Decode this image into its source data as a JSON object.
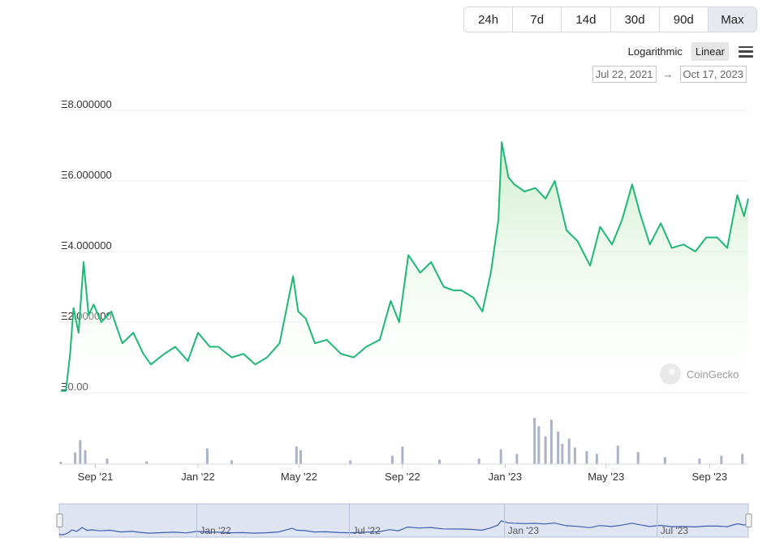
{
  "range_buttons": [
    {
      "label": "24h",
      "active": false
    },
    {
      "label": "7d",
      "active": false
    },
    {
      "label": "14d",
      "active": false
    },
    {
      "label": "30d",
      "active": false
    },
    {
      "label": "90d",
      "active": false
    },
    {
      "label": "Max",
      "active": true
    }
  ],
  "scale": {
    "log_label": "Logarithmic",
    "linear_label": "Linear",
    "selected": "Linear"
  },
  "date_range": {
    "from": "Jul 22, 2021",
    "arrow": "→",
    "to": "Oct 17, 2023"
  },
  "watermark": "CoinGecko",
  "navigator_labels": [
    "Jan '22",
    "Jul '22",
    "Jan '23",
    "Jul '23"
  ],
  "colors": {
    "line": "#1fb876",
    "fill": "#d5f0d4",
    "volume": "#aab3c8",
    "navigator_line": "#3d5fb0",
    "navigator_fill": "#dfe4f3"
  },
  "chart_data": {
    "type": "area",
    "y_prefix": "Ξ",
    "ylim": [
      0,
      8
    ],
    "y_ticks": [
      0,
      2,
      4,
      6,
      8
    ],
    "y_tick_labels": [
      "Ξ0.00",
      "Ξ2.000000",
      "Ξ4.000000",
      "Ξ6.000000",
      "Ξ8.000000"
    ],
    "x_ticks": [
      "2021-09-01",
      "2022-01-01",
      "2022-05-01",
      "2022-09-01",
      "2023-01-01",
      "2023-05-01",
      "2023-09-01"
    ],
    "x_tick_labels": [
      "Sep '21",
      "Jan '22",
      "May '22",
      "Sep '22",
      "Jan '23",
      "May '23",
      "Sep '23"
    ],
    "x_range": [
      "2021-07-22",
      "2023-10-17"
    ],
    "grid": true,
    "series": [
      {
        "x": [
          "2021-07-22",
          "2021-07-28",
          "2021-08-02",
          "2021-08-06",
          "2021-08-12",
          "2021-08-18",
          "2021-08-24",
          "2021-08-30",
          "2021-09-08",
          "2021-09-20",
          "2021-10-03",
          "2021-10-16",
          "2021-10-28",
          "2021-11-06",
          "2021-11-22",
          "2021-12-05",
          "2021-12-20",
          "2022-01-01",
          "2022-01-15",
          "2022-01-25",
          "2022-02-10",
          "2022-02-24",
          "2022-03-10",
          "2022-03-24",
          "2022-04-08",
          "2022-04-24",
          "2022-04-30",
          "2022-05-09",
          "2022-05-20",
          "2022-06-03",
          "2022-06-20",
          "2022-07-05",
          "2022-07-20",
          "2022-08-05",
          "2022-08-18",
          "2022-08-28",
          "2022-09-08",
          "2022-09-22",
          "2022-10-05",
          "2022-10-20",
          "2022-11-01",
          "2022-11-10",
          "2022-11-24",
          "2022-12-05",
          "2022-12-15",
          "2022-12-24",
          "2022-12-28",
          "2023-01-05",
          "2023-01-12",
          "2023-01-24",
          "2023-02-06",
          "2023-02-18",
          "2023-03-01",
          "2023-03-15",
          "2023-03-28",
          "2023-04-12",
          "2023-04-24",
          "2023-05-08",
          "2023-05-20",
          "2023-06-01",
          "2023-06-10",
          "2023-06-22",
          "2023-07-05",
          "2023-07-18",
          "2023-08-01",
          "2023-08-15",
          "2023-08-28",
          "2023-09-10",
          "2023-09-22",
          "2023-10-04",
          "2023-10-12",
          "2023-10-17"
        ],
        "values": [
          0.05,
          0.05,
          1.1,
          2.4,
          1.7,
          3.7,
          2.2,
          2.5,
          2.0,
          2.3,
          1.4,
          1.7,
          1.1,
          0.8,
          1.1,
          1.3,
          0.9,
          1.7,
          1.3,
          1.3,
          1.0,
          1.1,
          0.8,
          1.0,
          1.4,
          3.3,
          2.3,
          2.1,
          1.4,
          1.5,
          1.1,
          1.0,
          1.3,
          1.5,
          2.6,
          2.0,
          3.9,
          3.4,
          3.7,
          3.0,
          2.9,
          2.9,
          2.7,
          2.3,
          3.4,
          4.9,
          7.1,
          6.1,
          5.9,
          5.7,
          5.8,
          5.5,
          6.0,
          4.6,
          4.3,
          3.6,
          4.7,
          4.2,
          4.9,
          5.9,
          5.1,
          4.2,
          4.8,
          4.1,
          4.2,
          4.0,
          4.4,
          4.4,
          4.1,
          5.6,
          5.0,
          5.5
        ]
      }
    ],
    "volume_series": [
      {
        "x": [
          "2021-07-22",
          "2021-08-08",
          "2021-08-14",
          "2021-08-20",
          "2021-09-15",
          "2021-11-01",
          "2022-01-12",
          "2022-02-10",
          "2022-04-28",
          "2022-05-03",
          "2022-07-01",
          "2022-08-20",
          "2022-09-01",
          "2022-10-15",
          "2022-12-01",
          "2022-12-27",
          "2023-01-15",
          "2023-02-05",
          "2023-02-10",
          "2023-02-18",
          "2023-02-25",
          "2023-03-05",
          "2023-03-10",
          "2023-03-18",
          "2023-03-25",
          "2023-04-08",
          "2023-04-20",
          "2023-05-15",
          "2023-06-08",
          "2023-07-10",
          "2023-08-20",
          "2023-09-15",
          "2023-10-10"
        ],
        "values": [
          5,
          25,
          52,
          30,
          12,
          6,
          34,
          8,
          38,
          30,
          8,
          18,
          38,
          10,
          12,
          32,
          22,
          100,
          82,
          60,
          96,
          70,
          44,
          55,
          36,
          28,
          22,
          40,
          26,
          15,
          12,
          18,
          22
        ]
      }
    ]
  }
}
